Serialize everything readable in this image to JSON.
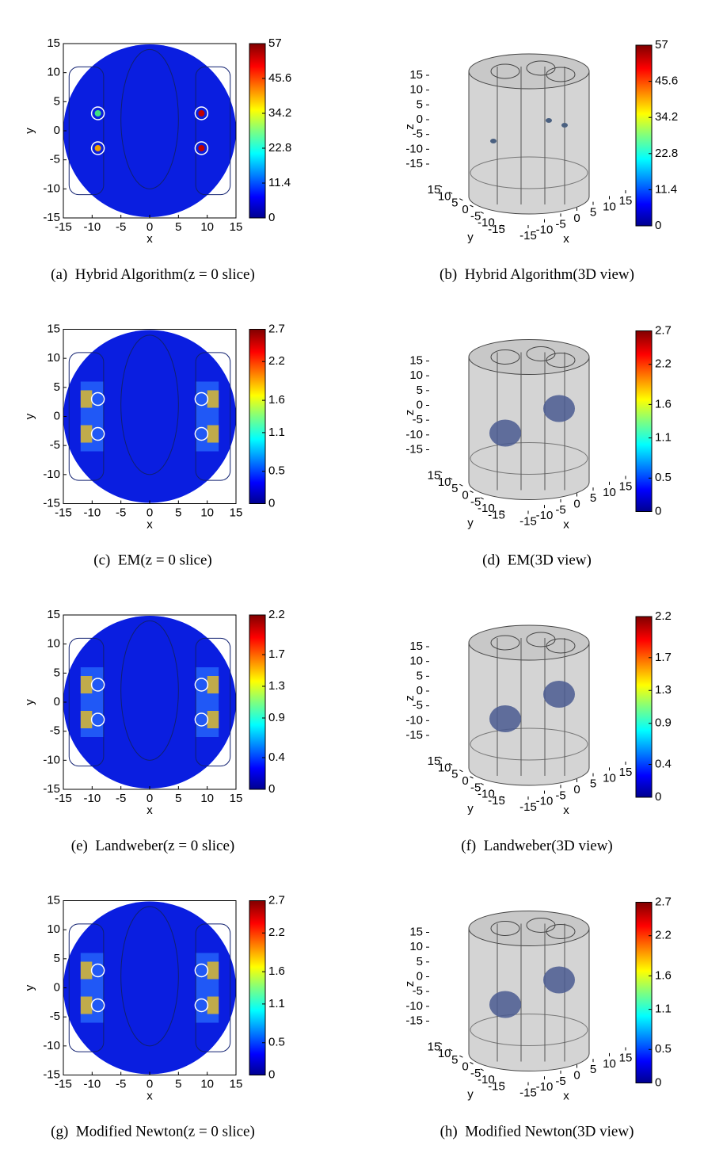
{
  "slice_axes": {
    "xlabel": "x",
    "ylabel": "y",
    "xlim": [
      -15,
      15
    ],
    "ylim": [
      -15,
      15
    ],
    "xticks": [
      -15,
      -10,
      -5,
      0,
      5,
      10,
      15
    ],
    "yticks": [
      -15,
      -10,
      -5,
      0,
      5,
      10,
      15
    ]
  },
  "view3d_axes": {
    "xlabel": "x",
    "ylabel": "y",
    "zlabel": "z",
    "lim": [
      -15,
      15
    ],
    "xticks": [
      -15,
      -10,
      -5,
      0,
      5,
      10,
      15
    ],
    "yticks": [
      -15,
      -10,
      -5,
      0,
      5,
      10,
      15
    ],
    "zticks": [
      -15,
      -10,
      -5,
      0,
      5,
      10,
      15
    ]
  },
  "panels": [
    {
      "label": "(a)",
      "caption": "Hybrid Algorithm(z = 0 slice)",
      "view": "slice",
      "clim": [
        0,
        57
      ],
      "cticks": [
        0,
        11.4,
        22.8,
        34.2,
        45.6,
        57
      ]
    },
    {
      "label": "(b)",
      "caption": "Hybrid Algorithm(3D view)",
      "view": "3d",
      "clim": [
        0,
        57
      ],
      "cticks": [
        0,
        11.4,
        22.8,
        34.2,
        45.6,
        57
      ]
    },
    {
      "label": "(c)",
      "caption": "EM(z = 0 slice)",
      "view": "slice",
      "clim": [
        0,
        2.7
      ],
      "cticks": [
        0,
        0.5,
        1.1,
        1.6,
        2.2,
        2.7
      ]
    },
    {
      "label": "(d)",
      "caption": "EM(3D view)",
      "view": "3d",
      "clim": [
        0,
        2.7
      ],
      "cticks": [
        0,
        0.5,
        1.1,
        1.6,
        2.2,
        2.7
      ]
    },
    {
      "label": "(e)",
      "caption": "Landweber(z = 0 slice)",
      "view": "slice",
      "clim": [
        0,
        2.2
      ],
      "cticks": [
        0,
        0.4,
        0.9,
        1.3,
        1.7,
        2.2
      ]
    },
    {
      "label": "(f)",
      "caption": "Landweber(3D view)",
      "view": "3d",
      "clim": [
        0,
        2.2
      ],
      "cticks": [
        0,
        0.4,
        0.9,
        1.3,
        1.7,
        2.2
      ]
    },
    {
      "label": "(g)",
      "caption": "Modified Newton(z = 0 slice)",
      "view": "slice",
      "clim": [
        0,
        2.7
      ],
      "cticks": [
        0,
        0.5,
        1.1,
        1.6,
        2.2,
        2.7
      ]
    },
    {
      "label": "(h)",
      "caption": "Modified Newton(3D view)",
      "view": "3d",
      "clim": [
        0,
        2.7
      ],
      "cticks": [
        0,
        0.5,
        1.1,
        1.6,
        2.2,
        2.7
      ]
    }
  ]
}
